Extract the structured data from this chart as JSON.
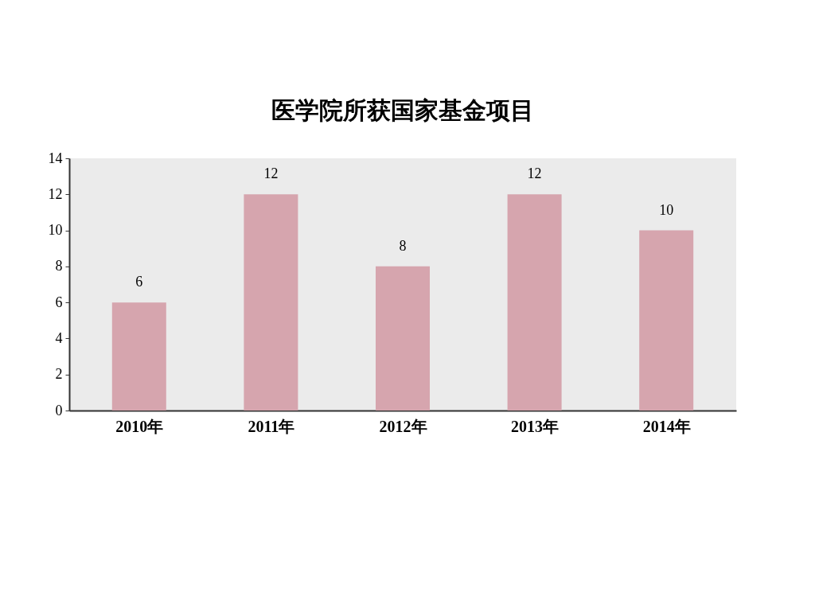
{
  "chart_data": {
    "type": "bar",
    "title": "医学院所获国家基金项目",
    "categories": [
      "2010年",
      "2011年",
      "2012年",
      "2013年",
      "2014年"
    ],
    "values": [
      6,
      12,
      8,
      12,
      10
    ],
    "color": "#d6a5ae",
    "ylim": [
      0,
      14
    ],
    "yticks": [
      0,
      2,
      4,
      6,
      8,
      10,
      12,
      14
    ],
    "grid": false,
    "data_labels": true
  }
}
